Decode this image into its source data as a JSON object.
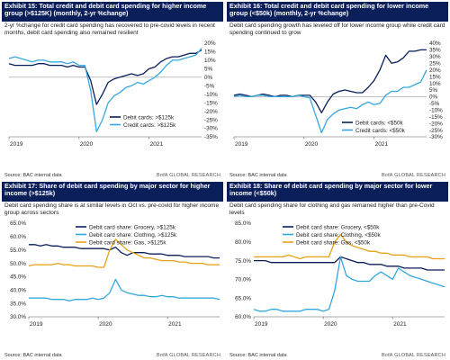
{
  "colors": {
    "dark": "#0a1e5a",
    "light": "#35a7e0",
    "gold": "#e6a117",
    "header_bg": "#0a1e5a"
  },
  "source": "Source: BAC internal data",
  "brand": "BofA GLOBAL RESEARCH",
  "panels": [
    {
      "title": "Exhibit 15: Total credit and debit card spending for higher income group (>$125K) (monthly, 2-yr %change)",
      "subtitle": "2-yr %change for credit card spending has recovered to pre-covid levels in recent months, debit card spending also remained resilient"
    },
    {
      "title": "Exhibit 16: Total credit and debit card spending for lower income group (<$50k) (monthly, 2-yr %change)",
      "subtitle": "Debit card spending growth has leveled off for lower income group while credit card spending continued to grow"
    },
    {
      "title": "Exhibit 17: Share of debit card spending by major sector for higher income (>$125k)",
      "subtitle": "Debit card spending share is at similar levels in Oct vs. pre-covid for higher income group across sectors"
    },
    {
      "title": "Exhibit 18: Share of debit card spending by major sector for lower income (<$50k)",
      "subtitle": "Debit card spending share for clothing and gas remained higher than pre-Covid levels"
    }
  ],
  "chart_data": [
    {
      "type": "line",
      "x": [
        "2019-01",
        "2019-02",
        "2019-03",
        "2019-04",
        "2019-05",
        "2019-06",
        "2019-07",
        "2019-08",
        "2019-09",
        "2019-10",
        "2019-11",
        "2019-12",
        "2020-01",
        "2020-02",
        "2020-03",
        "2020-04",
        "2020-05",
        "2020-06",
        "2020-07",
        "2020-08",
        "2020-09",
        "2020-10",
        "2020-11",
        "2020-12",
        "2021-01",
        "2021-02",
        "2021-03",
        "2021-04",
        "2021-05",
        "2021-06",
        "2021-07",
        "2021-08",
        "2021-09",
        "2021-10"
      ],
      "x_ticks": [
        "2019",
        "2020",
        "2021"
      ],
      "yticks": [
        "20%",
        "15%",
        "10%",
        "5%",
        "0%",
        "-5%",
        "-10%",
        "-15%",
        "-20%",
        "-25%",
        "-30%",
        "-35%"
      ],
      "ylim": [
        -35,
        20
      ],
      "legend_placement": "bottom-right",
      "series": [
        {
          "name": "Debit cards: >$125k",
          "color": "#0a1e5a",
          "values": [
            8,
            7,
            7,
            7,
            7,
            8,
            8,
            7,
            7,
            7,
            6,
            7,
            6,
            6,
            -2,
            -16,
            -10,
            -3,
            -1,
            0,
            1,
            2,
            1,
            2,
            5,
            6,
            9,
            11,
            12,
            12,
            13,
            14,
            14,
            16
          ]
        },
        {
          "name": "Credit cards: >$125k",
          "color": "#35a7e0",
          "values": [
            11,
            12,
            11,
            10,
            9,
            10,
            10,
            9,
            9,
            9,
            8,
            9,
            7,
            7,
            -8,
            -32,
            -25,
            -15,
            -11,
            -9,
            -6,
            -5,
            -3,
            -4,
            -2,
            0,
            3,
            7,
            10,
            10,
            11,
            12,
            13,
            17
          ]
        }
      ]
    },
    {
      "type": "line",
      "x": [
        "2019-01",
        "2019-02",
        "2019-03",
        "2019-04",
        "2019-05",
        "2019-06",
        "2019-07",
        "2019-08",
        "2019-09",
        "2019-10",
        "2019-11",
        "2019-12",
        "2020-01",
        "2020-02",
        "2020-03",
        "2020-04",
        "2020-05",
        "2020-06",
        "2020-07",
        "2020-08",
        "2020-09",
        "2020-10",
        "2020-11",
        "2020-12",
        "2021-01",
        "2021-02",
        "2021-03",
        "2021-04",
        "2021-05",
        "2021-06",
        "2021-07",
        "2021-08",
        "2021-09",
        "2021-10"
      ],
      "x_ticks": [
        "2019",
        "2020",
        "2021"
      ],
      "yticks": [
        "40%",
        "35%",
        "30%",
        "25%",
        "20%",
        "15%",
        "10%",
        "5%",
        "0%",
        "-5%",
        "-10%",
        "-15%",
        "-20%",
        "-25%",
        "-30%"
      ],
      "ylim": [
        -30,
        40
      ],
      "legend_placement": "bottom-right",
      "series": [
        {
          "name": "Debit cards: <$50k",
          "color": "#0a1e5a",
          "values": [
            1,
            2,
            1,
            0,
            1,
            2,
            1,
            0,
            1,
            1,
            0,
            1,
            1,
            1,
            -4,
            -12,
            -4,
            2,
            4,
            5,
            4,
            3,
            3,
            7,
            12,
            20,
            31,
            25,
            26,
            29,
            34,
            34,
            35,
            35
          ]
        },
        {
          "name": "Credit cards: <$50k",
          "color": "#35a7e0",
          "values": [
            0,
            1,
            0,
            0,
            1,
            1,
            0,
            0,
            0,
            0,
            0,
            1,
            0,
            -1,
            -14,
            -27,
            -17,
            -13,
            -10,
            -9,
            -8,
            -9,
            -6,
            -4,
            -6,
            -5,
            1,
            4,
            4,
            7,
            7,
            9,
            11,
            20
          ]
        }
      ]
    },
    {
      "type": "line",
      "x": [
        "2019-01",
        "2019-02",
        "2019-03",
        "2019-04",
        "2019-05",
        "2019-06",
        "2019-07",
        "2019-08",
        "2019-09",
        "2019-10",
        "2019-11",
        "2019-12",
        "2020-01",
        "2020-02",
        "2020-03",
        "2020-04",
        "2020-05",
        "2020-06",
        "2020-07",
        "2020-08",
        "2020-09",
        "2020-10",
        "2020-11",
        "2020-12",
        "2021-01",
        "2021-02",
        "2021-03",
        "2021-04",
        "2021-05",
        "2021-06",
        "2021-07",
        "2021-08",
        "2021-09",
        "2021-10"
      ],
      "x_ticks": [
        "2019",
        "2020",
        "2021"
      ],
      "yticks": [
        "65.0%",
        "60.0%",
        "55.0%",
        "50.0%",
        "45.0%",
        "40.0%",
        "35.0%",
        "30.0%"
      ],
      "ylim": [
        30,
        65
      ],
      "legend_placement": "top-right",
      "series": [
        {
          "name": "Debit card share: Grocery, >$125k",
          "color": "#0a1e5a",
          "values": [
            57,
            57,
            56.5,
            57,
            56.5,
            56.5,
            56,
            56,
            56,
            55.5,
            55.5,
            55.5,
            55.5,
            55.5,
            55,
            56,
            54,
            53,
            54,
            54,
            54,
            53.5,
            53.5,
            53.5,
            53,
            53,
            53,
            52.5,
            52.5,
            52.5,
            52.5,
            52.5,
            52,
            52
          ]
        },
        {
          "name": "Debit card share: Clothing, >$125k",
          "color": "#35a7e0",
          "values": [
            37,
            37,
            37,
            37,
            36.5,
            36.5,
            36.5,
            36,
            36.5,
            36.5,
            36.5,
            37,
            36.5,
            37,
            39,
            44,
            40,
            39,
            38.5,
            38,
            38,
            37.5,
            37.5,
            38,
            37.5,
            37.5,
            37,
            37,
            37,
            37,
            37,
            37,
            37,
            36.5
          ]
        },
        {
          "name": "Debit card share: Gas, >$125k",
          "color": "#e6a117",
          "values": [
            49,
            49.5,
            49.5,
            49.5,
            49.5,
            50,
            49.5,
            49.5,
            49,
            49,
            49,
            49,
            48.5,
            48.5,
            55,
            59,
            57,
            55,
            54,
            53,
            52,
            52,
            51.5,
            51,
            51,
            51,
            50.5,
            50.5,
            50,
            50,
            50,
            49.5,
            49.5,
            49.5
          ]
        }
      ]
    },
    {
      "type": "line",
      "x": [
        "2019-01",
        "2019-02",
        "2019-03",
        "2019-04",
        "2019-05",
        "2019-06",
        "2019-07",
        "2019-08",
        "2019-09",
        "2019-10",
        "2019-11",
        "2019-12",
        "2020-01",
        "2020-02",
        "2020-03",
        "2020-04",
        "2020-05",
        "2020-06",
        "2020-07",
        "2020-08",
        "2020-09",
        "2020-10",
        "2020-11",
        "2020-12",
        "2021-01",
        "2021-02",
        "2021-03",
        "2021-04",
        "2021-05",
        "2021-06",
        "2021-07",
        "2021-08",
        "2021-09",
        "2021-10"
      ],
      "x_ticks": [
        "2019",
        "2020",
        "2021"
      ],
      "yticks": [
        "85.0%",
        "80.0%",
        "75.0%",
        "70.0%",
        "65.0%",
        "60.0%"
      ],
      "ylim": [
        60,
        85
      ],
      "legend_placement": "top-left",
      "series": [
        {
          "name": "Debit card share: Grocery, <$50k",
          "color": "#0a1e5a",
          "values": [
            75,
            75,
            75,
            74.5,
            74.5,
            74.5,
            74.5,
            74.5,
            74.5,
            74.5,
            74.5,
            74.5,
            74.5,
            74.5,
            74.5,
            76,
            75.5,
            75,
            74.5,
            74.5,
            74,
            74,
            74,
            73.5,
            73.5,
            73.5,
            73,
            73,
            73,
            73,
            72.5,
            72.5,
            72.5,
            72.5
          ]
        },
        {
          "name": "Debit card share: Clothing, <$50k",
          "color": "#35a7e0",
          "values": [
            62,
            61.5,
            61.5,
            62,
            62,
            61.5,
            61.5,
            61.5,
            61.5,
            62,
            62,
            62,
            61.5,
            62,
            67,
            76,
            71,
            70,
            69.5,
            69.5,
            69.5,
            71,
            72,
            71,
            70,
            73,
            72,
            71,
            70.5,
            70,
            69.5,
            69,
            68.5,
            68
          ]
        },
        {
          "name": "Debit card share: Gas, <$50k",
          "color": "#e6a117",
          "values": [
            76,
            76,
            76,
            76,
            76,
            76,
            76.5,
            76,
            75.5,
            76,
            76,
            76,
            76,
            76,
            80,
            82,
            80,
            79,
            78.5,
            78,
            77.5,
            77.5,
            77,
            77,
            76.5,
            76.5,
            76.5,
            76,
            76,
            76,
            76,
            75.5,
            75.5,
            75.5
          ]
        }
      ]
    }
  ]
}
